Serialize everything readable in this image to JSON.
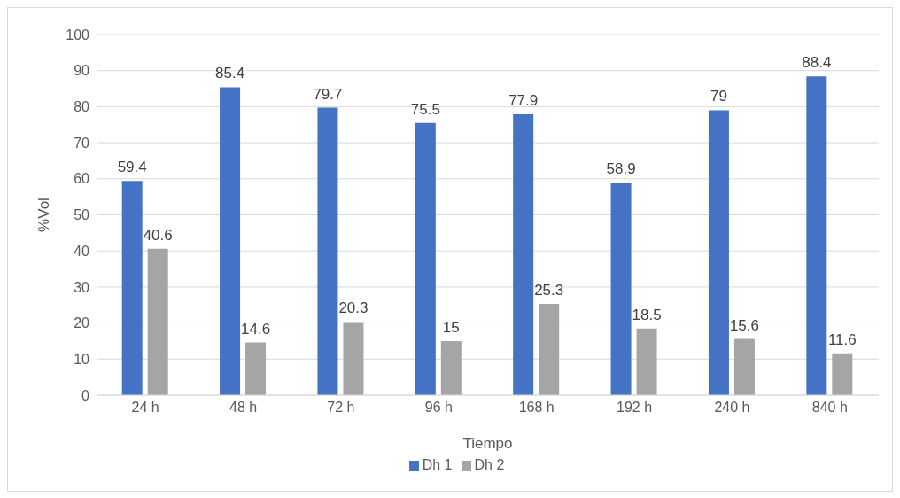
{
  "chart_data": {
    "type": "bar",
    "xlabel": "Tiempo",
    "ylabel": "%Vol",
    "categories": [
      "24 h",
      "48 h",
      "72 h",
      "96 h",
      "168 h",
      "192 h",
      "240 h",
      "840 h"
    ],
    "series": [
      {
        "name": "Dh 1",
        "color": "#4472c4",
        "values": [
          59.4,
          85.4,
          79.7,
          75.5,
          77.9,
          58.9,
          79,
          88.4
        ]
      },
      {
        "name": "Dh 2",
        "color": "#a5a5a5",
        "values": [
          40.6,
          14.6,
          20.3,
          15,
          25.3,
          18.5,
          15.6,
          11.6
        ]
      }
    ],
    "ylim": [
      0,
      100
    ],
    "yticks": [
      0,
      10,
      20,
      30,
      40,
      50,
      60,
      70,
      80,
      90,
      100
    ],
    "grid": "y",
    "legend": "bottom",
    "data_labels": true
  }
}
